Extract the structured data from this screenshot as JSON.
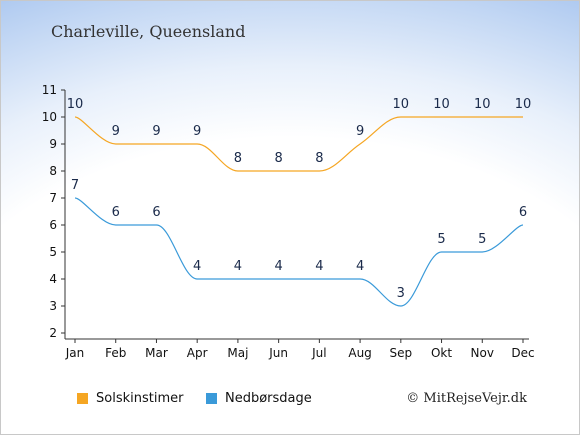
{
  "title": "Charleville, Queensland",
  "copyright": "© MitRejseVejr.dk",
  "chart_data": {
    "type": "line",
    "categories": [
      "Jan",
      "Feb",
      "Mar",
      "Apr",
      "Maj",
      "Jun",
      "Jul",
      "Aug",
      "Sep",
      "Okt",
      "Nov",
      "Dec"
    ],
    "ylim": [
      2,
      11
    ],
    "yticks": [
      2,
      3,
      4,
      5,
      6,
      7,
      8,
      9,
      10,
      11
    ],
    "legend_position": "bottom-left",
    "series": [
      {
        "name": "Solskinstimer",
        "color": "#f5a623",
        "values": [
          10,
          9,
          9,
          9,
          8,
          8,
          8,
          9,
          10,
          10,
          10,
          10
        ]
      },
      {
        "name": "Nedbørsdage",
        "color": "#3a9ad9",
        "values": [
          7,
          6,
          6,
          4,
          4,
          4,
          4,
          4,
          3,
          5,
          5,
          6
        ]
      }
    ]
  }
}
